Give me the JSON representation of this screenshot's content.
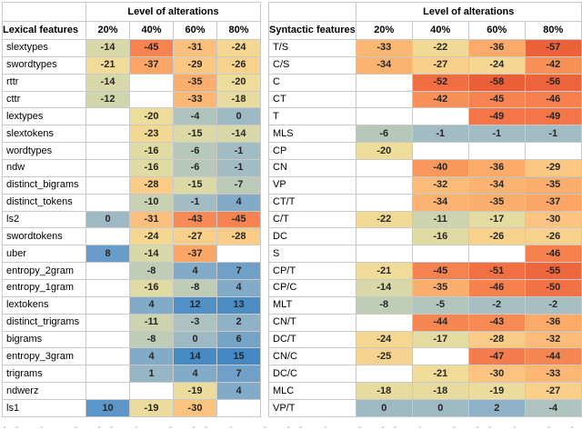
{
  "figure": {
    "description_label": "Heatmap tables of feature value changes by level of alterations"
  },
  "chart_data": [
    {
      "type": "heatmap",
      "title": "Level of alterations",
      "row_header": "Lexical features",
      "columns": [
        "20%",
        "40%",
        "60%",
        "80%"
      ],
      "value_range": [
        -45,
        15
      ],
      "rows": [
        {
          "feature": "slextypes",
          "values": [
            -14,
            -45,
            -31,
            -24
          ]
        },
        {
          "feature": "swordtypes",
          "values": [
            -21,
            -37,
            -29,
            -26
          ]
        },
        {
          "feature": "rttr",
          "values": [
            -14,
            null,
            -35,
            -20
          ]
        },
        {
          "feature": "cttr",
          "values": [
            -12,
            null,
            -33,
            -18
          ]
        },
        {
          "feature": "lextypes",
          "values": [
            null,
            -20,
            -4,
            0
          ]
        },
        {
          "feature": "slextokens",
          "values": [
            null,
            -23,
            -15,
            -14
          ]
        },
        {
          "feature": "wordtypes",
          "values": [
            null,
            -16,
            -6,
            -1
          ]
        },
        {
          "feature": "ndw",
          "values": [
            null,
            -16,
            -6,
            -1
          ]
        },
        {
          "feature": "distinct_bigrams",
          "values": [
            null,
            -28,
            -15,
            -7
          ]
        },
        {
          "feature": "distinct_tokens",
          "values": [
            null,
            -10,
            -1,
            4
          ]
        },
        {
          "feature": "ls2",
          "values": [
            0,
            -31,
            -43,
            -45
          ]
        },
        {
          "feature": "swordtokens",
          "values": [
            null,
            -24,
            -27,
            -28
          ]
        },
        {
          "feature": "uber",
          "values": [
            8,
            -14,
            -37,
            null
          ]
        },
        {
          "feature": "entropy_2gram",
          "values": [
            null,
            -8,
            4,
            7
          ]
        },
        {
          "feature": "entropy_1gram",
          "values": [
            null,
            -16,
            -8,
            4
          ]
        },
        {
          "feature": "lextokens",
          "values": [
            null,
            4,
            12,
            13
          ]
        },
        {
          "feature": "distinct_trigrams",
          "values": [
            null,
            -11,
            -3,
            2
          ]
        },
        {
          "feature": "bigrams",
          "values": [
            null,
            -8,
            0,
            6
          ]
        },
        {
          "feature": "entropy_3gram",
          "values": [
            null,
            4,
            14,
            15
          ]
        },
        {
          "feature": "trigrams",
          "values": [
            null,
            1,
            4,
            7
          ]
        },
        {
          "feature": "ndwerz",
          "values": [
            null,
            null,
            -19,
            4
          ]
        },
        {
          "feature": "ls1",
          "values": [
            10,
            -19,
            -30,
            null
          ]
        }
      ]
    },
    {
      "type": "heatmap",
      "title": "Level of alterations",
      "row_header": "Syntactic features",
      "columns": [
        "20%",
        "40%",
        "60%",
        "80%"
      ],
      "value_range": [
        -58,
        2
      ],
      "rows": [
        {
          "feature": "T/S",
          "values": [
            -33,
            -22,
            -36,
            -57
          ]
        },
        {
          "feature": "C/S",
          "values": [
            -34,
            -27,
            -24,
            -42
          ]
        },
        {
          "feature": "C",
          "values": [
            null,
            -52,
            -58,
            -56
          ]
        },
        {
          "feature": "CT",
          "values": [
            null,
            -42,
            -45,
            -46
          ]
        },
        {
          "feature": "T",
          "values": [
            null,
            null,
            -49,
            -49
          ]
        },
        {
          "feature": "MLS",
          "values": [
            -6,
            -1,
            -1,
            -1
          ]
        },
        {
          "feature": "CP",
          "values": [
            -20,
            null,
            null,
            null
          ]
        },
        {
          "feature": "CN",
          "values": [
            null,
            -40,
            -36,
            -29
          ]
        },
        {
          "feature": "VP",
          "values": [
            null,
            -32,
            -34,
            -35
          ]
        },
        {
          "feature": "CT/T",
          "values": [
            null,
            -34,
            -35,
            -37
          ]
        },
        {
          "feature": "C/T",
          "values": [
            -22,
            -11,
            -17,
            -30
          ]
        },
        {
          "feature": "DC",
          "values": [
            null,
            -16,
            -26,
            -26
          ]
        },
        {
          "feature": "S",
          "values": [
            null,
            null,
            null,
            -46
          ]
        },
        {
          "feature": "CP/T",
          "values": [
            -21,
            -45,
            -51,
            -55
          ]
        },
        {
          "feature": "CP/C",
          "values": [
            -14,
            -35,
            -46,
            -50
          ]
        },
        {
          "feature": "MLT",
          "values": [
            -8,
            -5,
            -2,
            -2
          ]
        },
        {
          "feature": "CN/T",
          "values": [
            null,
            -44,
            -43,
            -36
          ]
        },
        {
          "feature": "DC/T",
          "values": [
            -24,
            -17,
            -28,
            -32
          ]
        },
        {
          "feature": "CN/C",
          "values": [
            -25,
            null,
            -47,
            -44
          ]
        },
        {
          "feature": "DC/C",
          "values": [
            null,
            -21,
            -30,
            -33
          ]
        },
        {
          "feature": "MLC",
          "values": [
            -18,
            -18,
            -19,
            -27
          ]
        },
        {
          "feature": "VP/T",
          "values": [
            0,
            0,
            2,
            -4
          ]
        }
      ]
    }
  ],
  "color_scale": {
    "description": "diverging red-orange (strong negative) through khaki/green-gray (mid) to blue (positive)",
    "empty_cell": "#ffffff",
    "grid_line": "#c9c9c9",
    "anchors": [
      [
        -58,
        "#ea5f38"
      ],
      [
        -50,
        "#f37245"
      ],
      [
        -45,
        "#f78350"
      ],
      [
        -40,
        "#f9985c"
      ],
      [
        -36,
        "#fbaa6a"
      ],
      [
        -32,
        "#fcbb79"
      ],
      [
        -28,
        "#fbcc87"
      ],
      [
        -24,
        "#f4d791"
      ],
      [
        -20,
        "#eedc9b"
      ],
      [
        -17,
        "#e4dba1"
      ],
      [
        -14,
        "#d8d8a8"
      ],
      [
        -11,
        "#ccd3ae"
      ],
      [
        -8,
        "#c0cdb6"
      ],
      [
        -5,
        "#b3c6bd"
      ],
      [
        -2,
        "#a8bfc2"
      ],
      [
        0,
        "#9cb9c4"
      ],
      [
        2,
        "#90b2c6"
      ],
      [
        4,
        "#82abc7"
      ],
      [
        6,
        "#76a4c7"
      ],
      [
        8,
        "#699cc8"
      ],
      [
        10,
        "#5c95c7"
      ],
      [
        12,
        "#5090c5"
      ],
      [
        15,
        "#4388c3"
      ]
    ]
  }
}
